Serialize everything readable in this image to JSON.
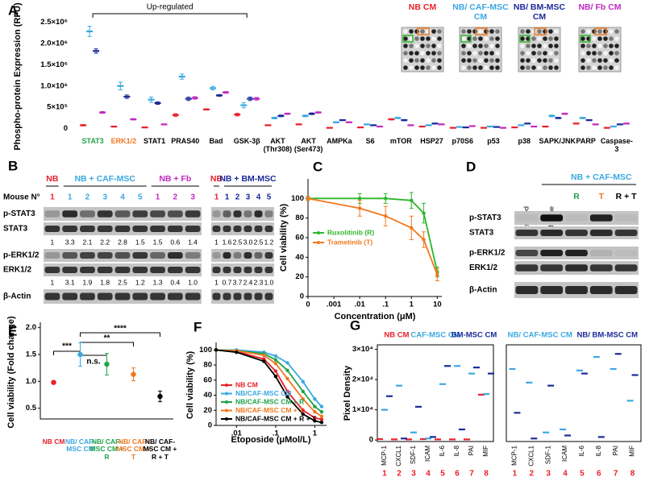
{
  "chart_data": [
    {
      "panel": "A",
      "type": "dot",
      "ylabel": "Phospho-protein Expression (RFU)",
      "annotation": "Up-regulated",
      "categories": [
        "STAT3",
        "ERK1/2",
        "STAT1",
        "PRAS40",
        "Bad",
        "GSK-3β",
        "AKT (Thr308)",
        "AKT (Ser473)",
        "AMPKa",
        "S6",
        "mTOR",
        "HSP27",
        "p70S6",
        "p53",
        "p38",
        "SAPK/JNK",
        "PARP",
        "Caspase-3"
      ],
      "category_colors": [
        "#1fa34a",
        "#f07820",
        "#000000",
        "#000000",
        "#000000",
        "#000000",
        "#000000",
        "#000000",
        "#000000",
        "#000000",
        "#000000",
        "#000000",
        "#000000",
        "#000000",
        "#000000",
        "#000000",
        "#000000",
        "#000000"
      ],
      "ylim": [
        -100000,
        2600000
      ],
      "yticks": [
        0,
        {
          "value": 500000,
          "label": "5×10⁵"
        },
        {
          "value": 1000000,
          "label": "1.0×10⁶"
        },
        {
          "value": 1500000,
          "label": "1.5×10⁶"
        },
        {
          "value": 2000000,
          "label": "2.0×10⁶"
        },
        {
          "value": 2500000,
          "label": "2.5×10⁶"
        }
      ],
      "series": [
        {
          "name": "NB CM",
          "color": "#e8202a",
          "values": [
            80000,
            50000,
            30000,
            320000,
            450000,
            330000,
            80000,
            100000,
            20000,
            30000,
            220000,
            50000,
            20000,
            20000,
            30000,
            50000,
            120000,
            20000
          ],
          "errors": [
            15000,
            10000,
            10000,
            30000,
            15000,
            30000,
            10000,
            10000,
            5000,
            5000,
            15000,
            5000,
            5000,
            5000,
            5000,
            10000,
            10000,
            5000
          ]
        },
        {
          "name": "NB/ CAF-MSC CM",
          "color": "#3aa8e0",
          "values": [
            2280000,
            1000000,
            680000,
            1220000,
            950000,
            550000,
            250000,
            300000,
            150000,
            100000,
            250000,
            80000,
            40000,
            50000,
            80000,
            300000,
            250000,
            50000
          ],
          "errors": [
            120000,
            90000,
            60000,
            60000,
            40000,
            60000,
            20000,
            20000,
            15000,
            10000,
            15000,
            10000,
            5000,
            5000,
            10000,
            20000,
            15000,
            5000
          ]
        },
        {
          "name": "NB/ BM-MSC CM",
          "color": "#1a2a9a",
          "values": [
            1820000,
            750000,
            600000,
            700000,
            780000,
            700000,
            300000,
            350000,
            200000,
            80000,
            200000,
            120000,
            30000,
            40000,
            120000,
            250000,
            200000,
            100000
          ],
          "errors": [
            50000,
            40000,
            30000,
            40000,
            20000,
            40000,
            20000,
            20000,
            10000,
            10000,
            15000,
            10000,
            5000,
            5000,
            10000,
            15000,
            10000,
            10000
          ]
        },
        {
          "name": "NB/ Fb CM",
          "color": "#c02ac0",
          "values": [
            380000,
            220000,
            100000,
            720000,
            850000,
            700000,
            350000,
            380000,
            150000,
            50000,
            80000,
            100000,
            60000,
            20000,
            50000,
            350000,
            100000,
            120000
          ],
          "errors": [
            20000,
            15000,
            10000,
            30000,
            20000,
            30000,
            15000,
            15000,
            10000,
            5000,
            10000,
            10000,
            5000,
            5000,
            5000,
            15000,
            10000,
            10000
          ]
        }
      ]
    },
    {
      "panel": "C",
      "type": "line",
      "xlabel": "Concentration (μM)",
      "ylabel": "Cell viability (%)",
      "log_x": true,
      "legend": "center left",
      "xlim": [
        0.0001,
        15
      ],
      "xticks": [
        0,
        {
          "value": 0.001,
          "label": ".001"
        },
        {
          "value": 0.01,
          "label": ".01"
        },
        {
          "value": 0.1,
          "label": ".1"
        },
        1,
        10
      ],
      "ylim": [
        0,
        120
      ],
      "yticks": [
        0,
        20,
        40,
        60,
        80,
        100
      ],
      "x": [
        0,
        0.01,
        0.1,
        1,
        3,
        10
      ],
      "series": [
        {
          "name": "Ruxolitinib (R)",
          "color": "#2db52d",
          "values": [
            100,
            100,
            100,
            98,
            85,
            25
          ],
          "errors": [
            2,
            5,
            5,
            8,
            10,
            5
          ]
        },
        {
          "name": "Trametinib (T)",
          "color": "#f07820",
          "values": [
            100,
            90,
            82,
            70,
            58,
            22
          ],
          "errors": [
            2,
            8,
            10,
            12,
            8,
            6
          ]
        }
      ]
    },
    {
      "panel": "E",
      "type": "dot",
      "ylabel": "Cell viability (Fold change)",
      "categories": [
        "NB CM",
        "NB/ CAF-MSC CM",
        "NB/ CAF-MSC CM + R",
        "NB/ CAF-MSC CM + T",
        "NB/ CAF-MSC CM + R + T"
      ],
      "category_colors": [
        "#e8202a",
        "#3aa8e0",
        "#1fa34a",
        "#f07820",
        "#000000"
      ],
      "values": [
        0.98,
        1.5,
        1.32,
        1.13,
        0.72
      ],
      "errors": [
        0.03,
        0.22,
        0.2,
        0.12,
        0.1
      ],
      "ylim": [
        0.3,
        2.1
      ],
      "yticks": [
        0.5,
        {
          "value": 1,
          "label": "1.0"
        },
        1.5,
        {
          "value": 2,
          "label": "2.0"
        }
      ],
      "annotations": [
        "***",
        "n.s.",
        "**",
        "****"
      ]
    },
    {
      "panel": "F",
      "type": "line",
      "xlabel": "Etoposide (μMol/L)",
      "ylabel": "Cell viability (%)",
      "log_x": true,
      "legend": "lower left",
      "xlim": [
        0.003,
        2
      ],
      "xticks": [
        {
          "value": 0.01,
          "label": ".01"
        },
        {
          "value": 0.1,
          "label": ".1"
        },
        1
      ],
      "ylim": [
        0,
        110
      ],
      "yticks": [
        0,
        20,
        40,
        60,
        80,
        100
      ],
      "x": [
        0.003,
        0.01,
        0.05,
        0.1,
        0.2,
        0.5,
        1,
        1.5
      ],
      "series": [
        {
          "name": "NB CM",
          "color": "#e8202a",
          "values": [
            100,
            98,
            88,
            72,
            45,
            20,
            10,
            8
          ]
        },
        {
          "name": "NB/CAF-MSC CM",
          "color": "#3aa8e0",
          "values": [
            100,
            100,
            97,
            92,
            83,
            58,
            35,
            25
          ]
        },
        {
          "name": "NB/CAF-MSC CM + R",
          "color": "#1fa34a",
          "values": [
            100,
            99,
            95,
            87,
            73,
            45,
            25,
            18
          ]
        },
        {
          "name": "NB/CAF-MSC CM + T",
          "color": "#f07820",
          "values": [
            100,
            99,
            93,
            82,
            62,
            35,
            18,
            12
          ]
        },
        {
          "name": "NB/CAF-MSC CM + R + T",
          "color": "#000000",
          "values": [
            100,
            97,
            85,
            65,
            38,
            15,
            6,
            4
          ]
        }
      ]
    },
    {
      "panel": "G",
      "type": "dot",
      "ylabel": "Pixel Density",
      "categories": [
        "MCP-1",
        "CXCL1",
        "SDF-1",
        "ICAM",
        "IL-6",
        "IL-8",
        "PAI",
        "MIF"
      ],
      "category_numbers": [
        "1",
        "2",
        "3",
        "4",
        "5",
        "6",
        "7",
        "8"
      ],
      "ylim": [
        -500,
        31500
      ],
      "yticks": [
        0,
        {
          "value": 10000,
          "label": "1×10⁴"
        },
        {
          "value": 20000,
          "label": "2×10⁴"
        },
        {
          "value": 30000,
          "label": "3×10⁴"
        }
      ],
      "series": [
        {
          "name": "NB CM",
          "color": "#e8202a",
          "values": [
            300,
            200,
            200,
            300,
            200,
            200,
            200,
            15000
          ]
        },
        {
          "name": "CAF-MSC CM",
          "color": "#3aa8e0",
          "values": [
            10000,
            18000,
            2500,
            500,
            18500,
            24500,
            22000,
            15200
          ]
        },
        {
          "name": "BM-MSC CM",
          "color": "#1a2a9a",
          "values": [
            14500,
            500,
            11000,
            1000,
            24500,
            3500,
            24000,
            22000
          ]
        }
      ]
    },
    {
      "type": "dot",
      "categories": [
        "MCP-1",
        "CXCL1",
        "SDF-1",
        "ICAM",
        "IL-6",
        "IL-8",
        "PAI",
        "MIF"
      ],
      "category_numbers": [
        "1",
        "2",
        "3",
        "4",
        "5",
        "6",
        "7",
        "8"
      ],
      "ylim": [
        -500,
        31500
      ],
      "series": [
        {
          "name": "NB/ CAF-MSC CM",
          "color": "#3aa8e0",
          "values": [
            23500,
            19000,
            2500,
            3500,
            23000,
            27500,
            23500,
            13000
          ]
        },
        {
          "name": "NB/ BM-MSC CM",
          "color": "#1a2a9a",
          "values": [
            9000,
            500,
            18000,
            1500,
            22000,
            1000,
            28500,
            21500
          ]
        }
      ]
    }
  ],
  "blots": [
    {
      "panel": "B",
      "lane_header": "Mouse N°",
      "rows": [
        "p-STAT3",
        "STAT3",
        "p-ERK1/2",
        "ERK1/2",
        "β-Actin"
      ],
      "blocks": [
        {
          "groups": [
            {
              "name": "NB",
              "color": "#e8202a",
              "lanes": [
                "1"
              ]
            },
            {
              "name": "NB + CAF-MSC",
              "color": "#3aa8e0",
              "lanes": [
                "1",
                "2",
                "3",
                "4",
                "5"
              ]
            },
            {
              "name": "NB + Fb",
              "color": "#c02ac0",
              "lanes": [
                "1",
                "2",
                "3"
              ]
            }
          ],
          "quant": [
            [
              "1",
              "3.3",
              "2.1",
              "2.2",
              "2.8",
              "1.5",
              "1.5",
              "0.6",
              "1.4"
            ],
            [
              "1",
              "3.1",
              "1.9",
              "1.8",
              "2.5",
              "1.2",
              "1.3",
              "0.4",
              "1.0"
            ]
          ]
        },
        {
          "groups": [
            {
              "name": "NB",
              "color": "#e8202a",
              "lanes": [
                "1"
              ]
            },
            {
              "name": "NB + BM-MSC",
              "color": "#1a2a9a",
              "lanes": [
                "1",
                "2",
                "3",
                "4",
                "5"
              ]
            }
          ],
          "quant": [
            [
              "1",
              "1.6",
              "2.5",
              "3.0",
              "2.5",
              "1.2"
            ],
            [
              "1",
              "0.7",
              "3.7",
              "2.4",
              "2.3",
              "1.0"
            ]
          ]
        }
      ]
    },
    {
      "panel": "D",
      "group": "NB + CAF-MSC",
      "group_color": "#3aa8e0",
      "lanes": [
        "Untreated",
        "CM alone",
        "R",
        "T",
        "R + T"
      ],
      "lane_colors": [
        "#000000",
        "#000000",
        "#1fa34a",
        "#f07820",
        "#000000"
      ],
      "rows": [
        "p-STAT3",
        "STAT3",
        "p-ERK1/2",
        "ERK1/2",
        "β-Actin"
      ]
    }
  ]
}
